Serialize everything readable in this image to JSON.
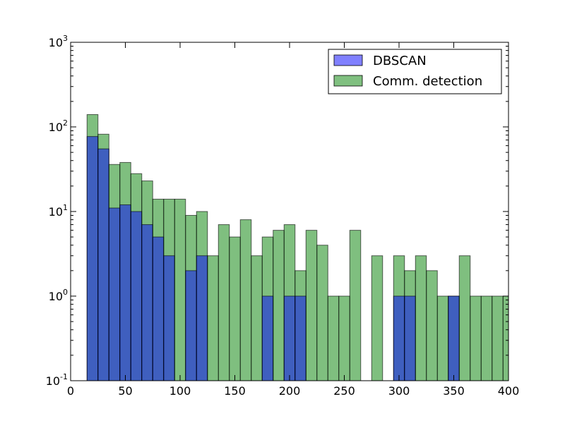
{
  "chart_data": {
    "type": "bar",
    "scale": {
      "y": "log"
    },
    "xlim": [
      0,
      400
    ],
    "ylim": [
      0.1,
      1000
    ],
    "xticks": [
      0,
      50,
      100,
      150,
      200,
      250,
      300,
      350,
      400
    ],
    "xtick_labels": [
      "0",
      "50",
      "100",
      "150",
      "200",
      "250",
      "300",
      "350",
      "400"
    ],
    "yticks": [
      {
        "value": 0.1,
        "base": "10",
        "exp": "-1"
      },
      {
        "value": 1,
        "base": "10",
        "exp": "0"
      },
      {
        "value": 10,
        "base": "10",
        "exp": "1"
      },
      {
        "value": 100,
        "base": "10",
        "exp": "2"
      },
      {
        "value": 1000,
        "base": "10",
        "exp": "3"
      }
    ],
    "grid": false,
    "legend_placement": "top-right",
    "bin_edges": [
      15,
      25,
      35,
      45,
      55,
      65,
      75,
      85,
      95,
      105,
      115,
      125,
      135,
      145,
      155,
      165,
      175,
      185,
      195,
      205,
      215,
      225,
      235,
      245,
      255,
      265,
      275,
      285,
      295,
      305,
      315,
      325,
      335,
      345,
      355,
      365,
      375,
      385,
      395,
      405
    ],
    "series": [
      {
        "name": "Comm. detection",
        "color": "#008000",
        "values": [
          140,
          82,
          36,
          38,
          28,
          23,
          14,
          14,
          14,
          9,
          10,
          3,
          7,
          5,
          8,
          3,
          5,
          6,
          7,
          2,
          6,
          4,
          1,
          1,
          6,
          0,
          3,
          0,
          3,
          2,
          3,
          2,
          1,
          1,
          3,
          1,
          1,
          1,
          1
        ]
      },
      {
        "name": "DBSCAN",
        "color": "#0000ff",
        "values": [
          77,
          55,
          11,
          12,
          10,
          7,
          5,
          3,
          0,
          2,
          3,
          0,
          0,
          0,
          0,
          0,
          1,
          0,
          1,
          1,
          0,
          0,
          0,
          0,
          0,
          0,
          0,
          0,
          1,
          1,
          0,
          0,
          0,
          1,
          0,
          0,
          0,
          0,
          0
        ]
      }
    ],
    "overlap_color": "#407f7f",
    "legend": [
      {
        "label": "DBSCAN",
        "color": "#8080ff"
      },
      {
        "label": "Comm. detection",
        "color": "#80c080"
      }
    ]
  }
}
